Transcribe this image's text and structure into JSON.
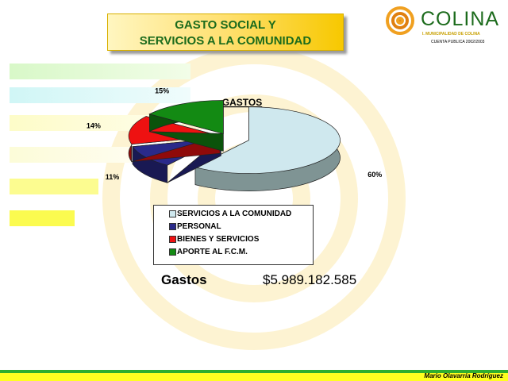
{
  "header": {
    "title_line1": "GASTO SOCIAL Y",
    "title_line2": "SERVICIOS A LA COMUNIDAD"
  },
  "logo": {
    "name": "COLINA",
    "subtitle": "I. MUNICIPALIDAD DE COLINA",
    "caption": "CUENTA PUBLICA 2002/2003"
  },
  "summary": {
    "label": "Gastos",
    "value": "$5.989.182.585"
  },
  "footer": {
    "author": "Mario Olavarría Rodríguez"
  },
  "chart_data": {
    "type": "pie",
    "title": "GASTOS",
    "legend_position": "bottom",
    "categories": [
      "SERVICIOS A LA COMUNIDAD",
      "PERSONAL",
      "BIENES Y SERVICIOS",
      "APORTE AL F.C.M."
    ],
    "values": [
      60,
      11,
      14,
      15
    ],
    "labels": [
      "60%",
      "11%",
      "14%",
      "15%"
    ],
    "colors": [
      "#cfe8ee",
      "#2a2a8a",
      "#ee1111",
      "#138a13"
    ]
  }
}
